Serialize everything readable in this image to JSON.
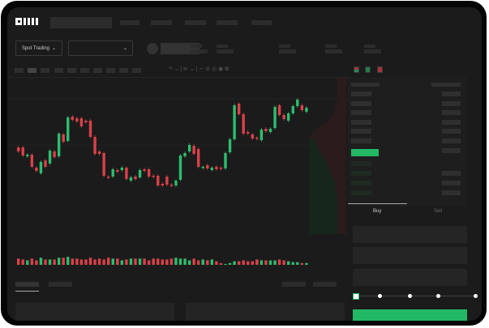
{
  "header": {
    "logo_text": "OKX"
  },
  "market_bar": {
    "mode_select": "Spot Trading"
  },
  "order_form": {
    "tabs": [
      {
        "label": "Buy",
        "active": true
      },
      {
        "label": "Sell",
        "active": false
      }
    ],
    "percent_slider_value": 0
  },
  "colors": {
    "up": "#2dbd6e",
    "down": "#d9414a",
    "background": "#1b1b1b",
    "accent": "#23b865"
  },
  "chart_data": {
    "type": "candlestick",
    "candles": [
      [
        58,
        53
      ],
      [
        58,
        48
      ],
      [
        47,
        49
      ],
      [
        49,
        34
      ],
      [
        33,
        29
      ],
      [
        26,
        40
      ],
      [
        42,
        34
      ],
      [
        38,
        54
      ],
      [
        53,
        46
      ],
      [
        47,
        75
      ],
      [
        74,
        65
      ],
      [
        66,
        95
      ],
      [
        96,
        92
      ],
      [
        94,
        90
      ],
      [
        94,
        84
      ],
      [
        91,
        89
      ],
      [
        91,
        71
      ],
      [
        71,
        50
      ],
      [
        53,
        50
      ],
      [
        51,
        23
      ],
      [
        22,
        21
      ],
      [
        22,
        31
      ],
      [
        30,
        28
      ],
      [
        30,
        33
      ],
      [
        33,
        19
      ],
      [
        17,
        21
      ],
      [
        22,
        19
      ],
      [
        21,
        30
      ],
      [
        31,
        29
      ],
      [
        31,
        22
      ],
      [
        23,
        22
      ],
      [
        23,
        11
      ],
      [
        13,
        11
      ],
      [
        22,
        12
      ],
      [
        12,
        11
      ],
      [
        11,
        17
      ],
      [
        18,
        48
      ],
      [
        47,
        51
      ],
      [
        53,
        61
      ],
      [
        60,
        50
      ],
      [
        56,
        34
      ],
      [
        33,
        34
      ],
      [
        36,
        32
      ],
      [
        30,
        33
      ],
      [
        34,
        31
      ],
      [
        33,
        32
      ],
      [
        32,
        51
      ],
      [
        52,
        68
      ],
      [
        68,
        110
      ],
      [
        112,
        99
      ],
      [
        99,
        75
      ],
      [
        77,
        75
      ],
      [
        74,
        69
      ],
      [
        70,
        69
      ],
      [
        67,
        80
      ],
      [
        81,
        78
      ],
      [
        77,
        81
      ],
      [
        82,
        108
      ],
      [
        110,
        98
      ],
      [
        98,
        93
      ],
      [
        91,
        100
      ],
      [
        100,
        109
      ],
      [
        109,
        117
      ],
      [
        110,
        104
      ],
      [
        102,
        107
      ]
    ],
    "volumes": [
      7,
      6,
      5,
      7,
      5,
      8,
      6,
      6,
      6,
      8,
      8,
      9,
      7,
      7,
      6,
      6,
      8,
      6,
      7,
      6,
      8,
      7,
      7,
      5,
      6,
      7,
      7,
      7,
      7,
      5,
      7,
      7,
      6,
      6,
      7,
      8,
      7,
      7,
      5,
      7,
      5,
      6,
      5,
      6,
      4,
      2,
      1,
      2,
      4,
      4,
      5,
      4,
      4,
      6,
      5,
      5,
      5,
      5,
      6,
      5,
      4,
      3,
      3,
      2,
      2
    ]
  }
}
